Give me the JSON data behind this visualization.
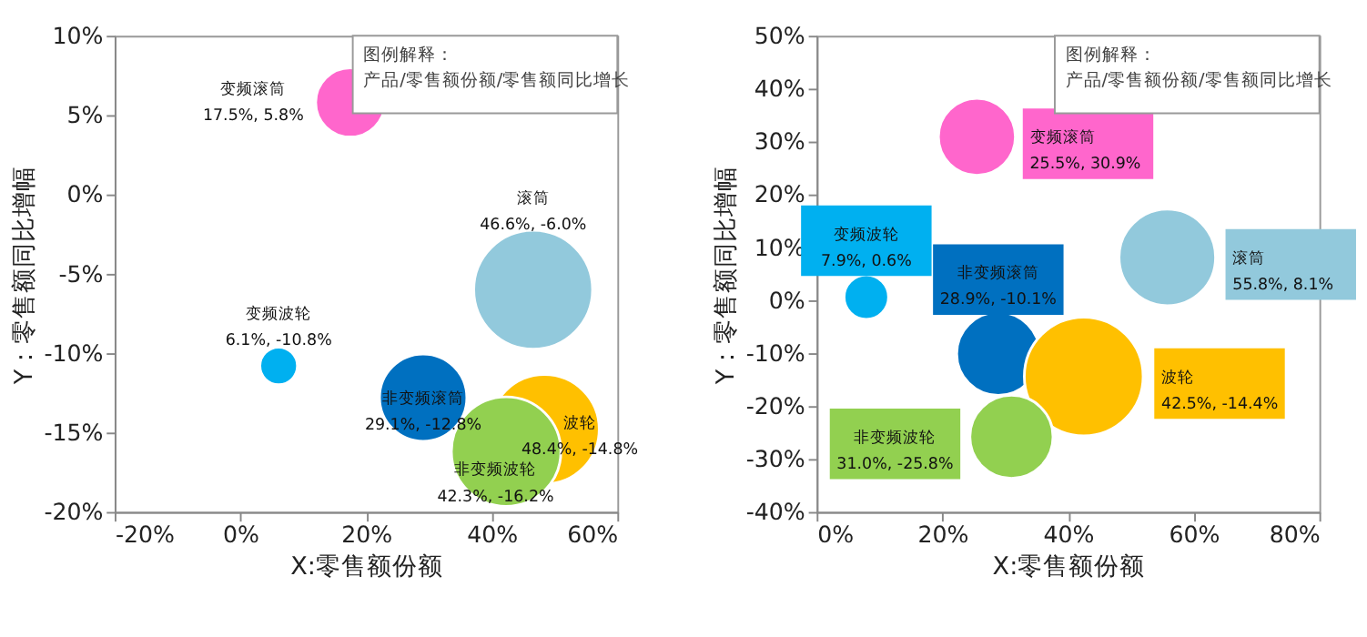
{
  "chart_data": [
    {
      "type": "bubble",
      "xlabel": "X:零售额份额",
      "ylabel": "Y：零售额同比增幅",
      "annotations": [
        "图例解释：",
        "产品/零售额份额/零售额同比增长"
      ],
      "xlim": [
        -20,
        60
      ],
      "xticks": [
        {
          "value": -20,
          "label": "-20%"
        },
        {
          "value": 0,
          "label": "0%"
        },
        {
          "value": 20,
          "label": "20%"
        },
        {
          "value": 40,
          "label": "40%"
        },
        {
          "value": 60,
          "label": "60%"
        }
      ],
      "ylim": [
        -20,
        10
      ],
      "yticks": [
        {
          "value": -20,
          "label": "-20%"
        },
        {
          "value": -15,
          "label": "-15%"
        },
        {
          "value": -10,
          "label": "-10%"
        },
        {
          "value": -5,
          "label": "-5%"
        },
        {
          "value": 0,
          "label": "0%"
        },
        {
          "value": 5,
          "label": "5%"
        },
        {
          "value": 10,
          "label": "10%"
        }
      ],
      "series": [
        {
          "name": "变频滚筒",
          "color": "#ff66cc",
          "x": [
            17.5
          ],
          "values": [
            5.8
          ],
          "sizes": [
            0.34
          ],
          "value_labels": [
            "17.5%, 5.8%"
          ]
        },
        {
          "name": "滚筒",
          "color": "#92c9dc",
          "x": [
            46.6
          ],
          "values": [
            -6.0
          ],
          "sizes": [
            1
          ],
          "value_labels": [
            "46.6%, -6.0%"
          ]
        },
        {
          "name": "变频波轮",
          "color": "#00b0f0",
          "x": [
            6.1
          ],
          "values": [
            -10.8
          ],
          "sizes": [
            0.1
          ],
          "value_labels": [
            "6.1%, -10.8%"
          ]
        },
        {
          "name": "非变频滚筒",
          "color": "#0070c0",
          "x": [
            29.1
          ],
          "values": [
            -12.8
          ],
          "sizes": [
            0.54
          ],
          "value_labels": [
            "29.1%, -12.8%"
          ]
        },
        {
          "name": "波轮",
          "color": "#ffc000",
          "x": [
            48.4
          ],
          "values": [
            -14.8
          ],
          "sizes": [
            0.85
          ],
          "value_labels": [
            "48.4%, -14.8%"
          ]
        },
        {
          "name": "非变频波轮",
          "color": "#92d050",
          "x": [
            42.3
          ],
          "values": [
            -16.2
          ],
          "sizes": [
            0.85
          ],
          "value_labels": [
            "42.3%, -16.2%"
          ]
        }
      ]
    },
    {
      "type": "bubble",
      "xlabel": "X:零售额份额",
      "ylabel": "Y：零售额同比增幅",
      "annotations": [
        "图例解释：",
        "产品/零售额份额/零售额同比增长"
      ],
      "xlim": [
        0,
        80
      ],
      "xticks": [
        {
          "value": 0,
          "label": "0%"
        },
        {
          "value": 20,
          "label": "20%"
        },
        {
          "value": 40,
          "label": "40%"
        },
        {
          "value": 60,
          "label": "60%"
        },
        {
          "value": 80,
          "label": "80%"
        }
      ],
      "ylim": [
        -40,
        50
      ],
      "yticks": [
        {
          "value": -40,
          "label": "-40%"
        },
        {
          "value": -30,
          "label": "-30%"
        },
        {
          "value": -20,
          "label": "-20%"
        },
        {
          "value": -10,
          "label": "-10%"
        },
        {
          "value": 0,
          "label": "0%"
        },
        {
          "value": 10,
          "label": "10%"
        },
        {
          "value": 20,
          "label": "20%"
        },
        {
          "value": 30,
          "label": "30%"
        },
        {
          "value": 40,
          "label": "40%"
        },
        {
          "value": 50,
          "label": "50%"
        }
      ],
      "series": [
        {
          "name": "变频滚筒",
          "color": "#ff66cc",
          "x": [
            25.5
          ],
          "values": [
            30.9
          ],
          "sizes": [
            0.42
          ],
          "value_labels": [
            "25.5%, 30.9%"
          ]
        },
        {
          "name": "滚筒",
          "color": "#92c9dc",
          "x": [
            55.8
          ],
          "values": [
            8.1
          ],
          "sizes": [
            0.66
          ],
          "value_labels": [
            "55.8%, 8.1%"
          ]
        },
        {
          "name": "变频波轮",
          "color": "#00b0f0",
          "x": [
            7.9
          ],
          "values": [
            0.6
          ],
          "sizes": [
            0.14
          ],
          "value_labels": [
            "7.9%, 0.6%"
          ]
        },
        {
          "name": "非变频滚筒",
          "color": "#0070c0",
          "x": [
            28.9
          ],
          "values": [
            -10.1
          ],
          "sizes": [
            0.49
          ],
          "value_labels": [
            "28.9%, -10.1%"
          ]
        },
        {
          "name": "波轮",
          "color": "#ffc000",
          "x": [
            42.5
          ],
          "values": [
            -14.4
          ],
          "sizes": [
            1
          ],
          "value_labels": [
            "42.5%, -14.4%"
          ]
        },
        {
          "name": "非变频波轮",
          "color": "#92d050",
          "x": [
            31.0
          ],
          "values": [
            -25.8
          ],
          "sizes": [
            0.49
          ],
          "value_labels": [
            "31.0%, -25.8%"
          ]
        }
      ]
    }
  ]
}
